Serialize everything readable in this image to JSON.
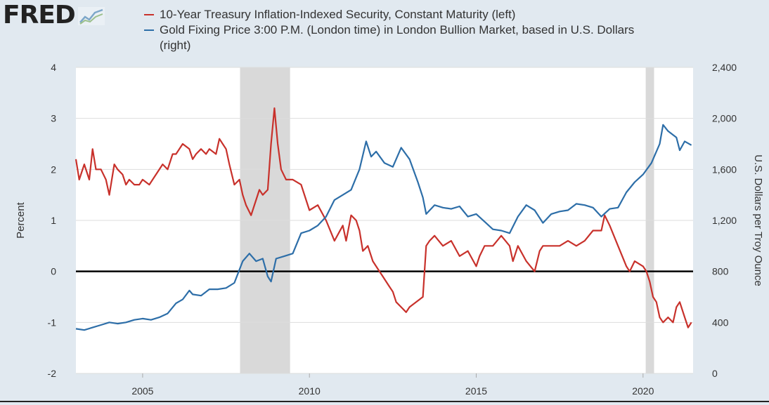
{
  "brand": {
    "logo_text": "FRED",
    "logo_mark": "fred-chart-icon"
  },
  "colors": {
    "series1": "#c8312b",
    "series2": "#2d6ea8",
    "recession": "#d9d9d9",
    "zero_line": "#000000",
    "plot_bg": "#ffffff",
    "page_bg": "#e1e9f0"
  },
  "chart_data": {
    "type": "line",
    "title": "",
    "legend": "top",
    "grid": {
      "horizontal": true,
      "vertical": false
    },
    "xlim": [
      2003.0,
      2021.5
    ],
    "x_ticks": [
      2005,
      2010,
      2015,
      2020
    ],
    "x_tick_labels": [
      "2005",
      "2010",
      "2015",
      "2020"
    ],
    "y_left": {
      "label": "Percent",
      "range": [
        -2,
        4
      ],
      "ticks": [
        -2,
        -1,
        0,
        1,
        2,
        3,
        4
      ],
      "tick_labels": [
        "-2",
        "-1",
        "0",
        "1",
        "2",
        "3",
        "4"
      ]
    },
    "y_right": {
      "label": "U.S. Dollars per Troy Ounce",
      "range": [
        0,
        2400
      ],
      "ticks": [
        0,
        400,
        800,
        1200,
        1600,
        2000,
        2400
      ],
      "tick_labels": [
        "0",
        "400",
        "800",
        "1,200",
        "1,600",
        "2,000",
        "2,400"
      ]
    },
    "reference_line": {
      "axis": "left",
      "value": 0
    },
    "recessions": [
      [
        2007.92,
        2009.42
      ],
      [
        2020.08,
        2020.33
      ]
    ],
    "series": [
      {
        "name": "10-Year Treasury Inflation-Indexed Security, Constant Maturity (left)",
        "axis": "left",
        "color": "#c8312b",
        "x": [
          2003.0,
          2003.1,
          2003.25,
          2003.4,
          2003.5,
          2003.6,
          2003.75,
          2003.9,
          2004.0,
          2004.15,
          2004.25,
          2004.4,
          2004.5,
          2004.6,
          2004.75,
          2004.9,
          2005.0,
          2005.2,
          2005.4,
          2005.6,
          2005.75,
          2005.9,
          2006.0,
          2006.2,
          2006.4,
          2006.5,
          2006.6,
          2006.75,
          2006.9,
          2007.0,
          2007.2,
          2007.3,
          2007.4,
          2007.5,
          2007.6,
          2007.75,
          2007.9,
          2008.0,
          2008.1,
          2008.25,
          2008.4,
          2008.5,
          2008.6,
          2008.75,
          2008.85,
          2008.95,
          2009.05,
          2009.15,
          2009.3,
          2009.5,
          2009.75,
          2010.0,
          2010.25,
          2010.5,
          2010.75,
          2011.0,
          2011.1,
          2011.25,
          2011.4,
          2011.5,
          2011.6,
          2011.75,
          2011.9,
          2012.0,
          2012.2,
          2012.4,
          2012.5,
          2012.6,
          2012.75,
          2012.9,
          2013.0,
          2013.2,
          2013.4,
          2013.5,
          2013.6,
          2013.75,
          2014.0,
          2014.25,
          2014.5,
          2014.75,
          2015.0,
          2015.1,
          2015.25,
          2015.5,
          2015.75,
          2016.0,
          2016.1,
          2016.25,
          2016.5,
          2016.75,
          2016.9,
          2017.0,
          2017.25,
          2017.5,
          2017.75,
          2018.0,
          2018.25,
          2018.5,
          2018.75,
          2018.85,
          2019.0,
          2019.25,
          2019.5,
          2019.6,
          2019.75,
          2020.0,
          2020.1,
          2020.2,
          2020.3,
          2020.4,
          2020.5,
          2020.6,
          2020.75,
          2020.9,
          2021.0,
          2021.1,
          2021.25,
          2021.35,
          2021.45
        ],
        "values": [
          2.2,
          1.8,
          2.1,
          1.8,
          2.4,
          2.0,
          2.0,
          1.8,
          1.5,
          2.1,
          2.0,
          1.9,
          1.7,
          1.8,
          1.7,
          1.7,
          1.8,
          1.7,
          1.9,
          2.1,
          2.0,
          2.3,
          2.3,
          2.5,
          2.4,
          2.2,
          2.3,
          2.4,
          2.3,
          2.4,
          2.3,
          2.6,
          2.5,
          2.4,
          2.1,
          1.7,
          1.8,
          1.5,
          1.3,
          1.1,
          1.4,
          1.6,
          1.5,
          1.6,
          2.5,
          3.2,
          2.5,
          2.0,
          1.8,
          1.8,
          1.7,
          1.2,
          1.3,
          1.0,
          0.6,
          0.9,
          0.6,
          1.1,
          1.0,
          0.8,
          0.4,
          0.5,
          0.2,
          0.1,
          -0.1,
          -0.3,
          -0.4,
          -0.6,
          -0.7,
          -0.8,
          -0.7,
          -0.6,
          -0.5,
          0.5,
          0.6,
          0.7,
          0.5,
          0.6,
          0.3,
          0.4,
          0.1,
          0.3,
          0.5,
          0.5,
          0.7,
          0.5,
          0.2,
          0.5,
          0.2,
          0.0,
          0.4,
          0.5,
          0.5,
          0.5,
          0.6,
          0.5,
          0.6,
          0.8,
          0.8,
          1.1,
          0.9,
          0.5,
          0.1,
          0.0,
          0.2,
          0.1,
          0.0,
          -0.2,
          -0.5,
          -0.6,
          -0.9,
          -1.0,
          -0.9,
          -1.0,
          -0.7,
          -0.6,
          -0.9,
          -1.1,
          -1.0
        ]
      },
      {
        "name": "Gold Fixing Price 3:00 P.M. (London time) in London Bullion Market, based in U.S. Dollars (right)",
        "axis": "right",
        "color": "#2d6ea8",
        "x": [
          2003.0,
          2003.25,
          2003.5,
          2003.75,
          2004.0,
          2004.25,
          2004.5,
          2004.75,
          2005.0,
          2005.25,
          2005.5,
          2005.75,
          2006.0,
          2006.2,
          2006.4,
          2006.5,
          2006.75,
          2007.0,
          2007.25,
          2007.5,
          2007.75,
          2008.0,
          2008.2,
          2008.4,
          2008.6,
          2008.75,
          2008.85,
          2009.0,
          2009.25,
          2009.5,
          2009.75,
          2010.0,
          2010.25,
          2010.5,
          2010.75,
          2011.0,
          2011.25,
          2011.5,
          2011.7,
          2011.85,
          2012.0,
          2012.25,
          2012.5,
          2012.75,
          2013.0,
          2013.25,
          2013.4,
          2013.5,
          2013.75,
          2014.0,
          2014.25,
          2014.5,
          2014.75,
          2015.0,
          2015.25,
          2015.5,
          2015.75,
          2016.0,
          2016.25,
          2016.5,
          2016.75,
          2017.0,
          2017.25,
          2017.5,
          2017.75,
          2018.0,
          2018.25,
          2018.5,
          2018.75,
          2019.0,
          2019.25,
          2019.5,
          2019.75,
          2020.0,
          2020.25,
          2020.5,
          2020.6,
          2020.75,
          2021.0,
          2021.1,
          2021.25,
          2021.45
        ],
        "values": [
          350,
          340,
          360,
          380,
          400,
          390,
          400,
          420,
          430,
          420,
          440,
          470,
          550,
          580,
          650,
          620,
          610,
          660,
          660,
          670,
          710,
          880,
          940,
          880,
          900,
          760,
          720,
          900,
          920,
          940,
          1100,
          1120,
          1160,
          1230,
          1360,
          1400,
          1440,
          1600,
          1820,
          1700,
          1740,
          1650,
          1620,
          1770,
          1680,
          1500,
          1380,
          1250,
          1320,
          1300,
          1290,
          1310,
          1230,
          1250,
          1190,
          1130,
          1120,
          1100,
          1230,
          1320,
          1280,
          1180,
          1250,
          1270,
          1280,
          1330,
          1320,
          1300,
          1230,
          1290,
          1300,
          1420,
          1500,
          1560,
          1650,
          1800,
          1950,
          1900,
          1850,
          1750,
          1820,
          1790
        ]
      }
    ]
  }
}
